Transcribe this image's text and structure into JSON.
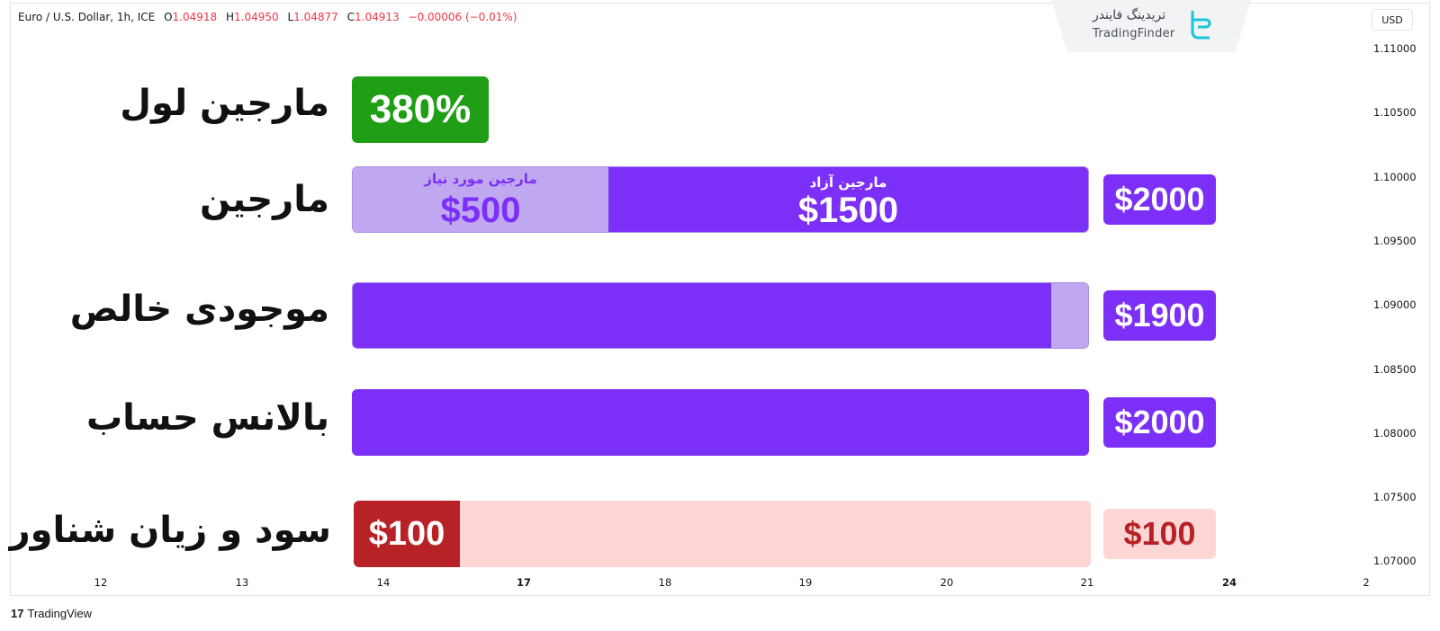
{
  "header": {
    "symbol": "Euro / U.S. Dollar, 1h, ICE",
    "open_key": "O",
    "open": "1.04918",
    "high_key": "H",
    "high": "1.04950",
    "low_key": "L",
    "low": "1.04877",
    "close_key": "C",
    "close": "1.04913",
    "change": "−0.00006 (−0.01%)"
  },
  "brand": {
    "name_fa": "تریدینگ فایندر",
    "name_en": "TradingFinder"
  },
  "axis": {
    "currency": "USD",
    "y_ticks": [
      "1.11000",
      "1.10500",
      "1.10000",
      "1.09500",
      "1.09000",
      "1.08500",
      "1.08000",
      "1.07500",
      "1.07000"
    ],
    "x_ticks": [
      {
        "label": "12",
        "bold": false
      },
      {
        "label": "13",
        "bold": false
      },
      {
        "label": "14",
        "bold": false
      },
      {
        "label": "17",
        "bold": true
      },
      {
        "label": "18",
        "bold": false
      },
      {
        "label": "19",
        "bold": false
      },
      {
        "label": "20",
        "bold": false
      },
      {
        "label": "21",
        "bold": false
      },
      {
        "label": "24",
        "bold": true
      },
      {
        "label": "2",
        "bold": false
      }
    ]
  },
  "rows": {
    "margin_level": {
      "label": "مارجین لول",
      "value": "380%"
    },
    "margin": {
      "label": "مارجین",
      "used_label": "مارجین مورد نیاز",
      "used_value": "$500",
      "free_label": "مارجین آزاد",
      "free_value": "$1500",
      "total": "$2000"
    },
    "equity": {
      "label": "موجودی خالص",
      "value": "$1900",
      "fill_fraction": 0.95
    },
    "balance": {
      "label": "بالانس حساب",
      "value": "$2000",
      "fill_fraction": 1.0
    },
    "floating_pl": {
      "label": "سود و زیان شناور",
      "segment_value": "$100",
      "value": "$100"
    }
  },
  "colors": {
    "purple": "#7b2ff7",
    "lavender": "#bfa8ef",
    "green": "#1f9e16",
    "red": "#b72227",
    "pink": "#ffd6d6",
    "down": "#f23645"
  },
  "footer": {
    "logo": "17",
    "name": "TradingView"
  }
}
